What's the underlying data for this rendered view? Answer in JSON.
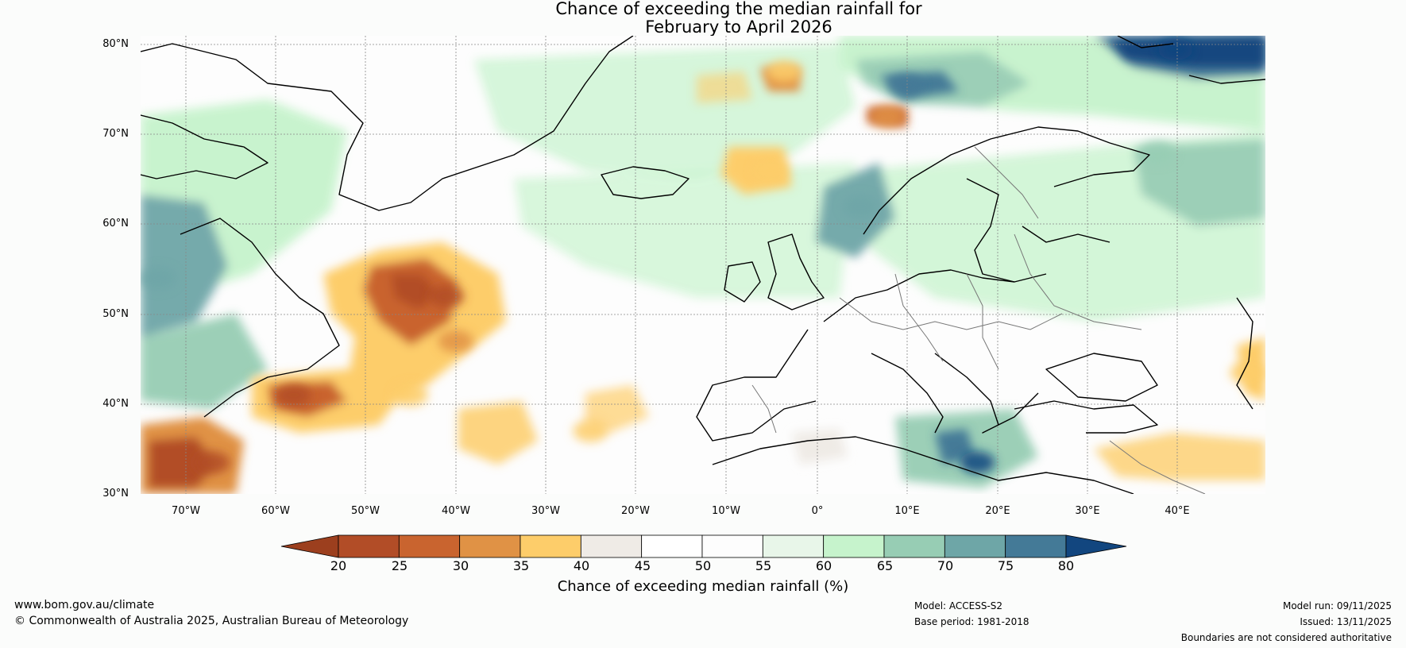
{
  "title": {
    "line1": "Chance of exceeding the median rainfall for",
    "line2": "February to April 2026"
  },
  "map": {
    "latitude_labels": [
      "80°N",
      "70°N",
      "60°N",
      "50°N",
      "40°N",
      "30°N"
    ],
    "longitude_labels": [
      "70°W",
      "60°W",
      "50°W",
      "40°W",
      "30°W",
      "20°W",
      "10°W",
      "0°",
      "10°E",
      "20°E",
      "30°E",
      "40°E"
    ],
    "extent": {
      "lon_min": -75,
      "lon_max": 50,
      "lat_min": 30,
      "lat_max": 81
    },
    "zones": [
      {
        "label": "dry",
        "lon": -67,
        "lat": 33.5,
        "pct": 20
      },
      {
        "label": "dry",
        "lon": -41,
        "lat": 52,
        "pct": 22
      },
      {
        "label": "dry",
        "lon": -58,
        "lat": 41,
        "pct": 22
      },
      {
        "label": "dry",
        "lon": -40,
        "lat": 47,
        "pct": 30
      },
      {
        "label": "dry",
        "lon": -45,
        "lat": 41,
        "pct": 35
      },
      {
        "label": "dry",
        "lon": -25,
        "lat": 37,
        "pct": 35
      },
      {
        "label": "dry",
        "lon": -3.5,
        "lat": 77,
        "pct": 35
      },
      {
        "label": "dry",
        "lon": 8,
        "lat": 72,
        "pct": 30
      },
      {
        "label": "dry",
        "lon": -5,
        "lat": 66,
        "pct": 35
      },
      {
        "label": "dry",
        "lon": 48,
        "lat": 43.5,
        "pct": 35
      },
      {
        "label": "wet",
        "lon": 40,
        "lat": 79.5,
        "pct": 80
      },
      {
        "label": "wet",
        "lon": 10,
        "lat": 75.5,
        "pct": 75
      },
      {
        "label": "wet",
        "lon": 18,
        "lat": 33.5,
        "pct": 80
      },
      {
        "label": "wet",
        "lon": -73,
        "lat": 54,
        "pct": 70
      },
      {
        "label": "wet",
        "lon": 5,
        "lat": 62,
        "pct": 70
      },
      {
        "label": "wet",
        "lon": 38,
        "lat": 68,
        "pct": 65
      }
    ]
  },
  "colorbar": {
    "title": "Chance of exceeding median rainfall (%)",
    "ticks": [
      "20",
      "25",
      "30",
      "35",
      "40",
      "45",
      "50",
      "55",
      "60",
      "65",
      "70",
      "75",
      "80"
    ],
    "below_color": "#9c3f1e",
    "above_color": "#12467f",
    "colors": [
      "#b24d27",
      "#c9642f",
      "#e09245",
      "#fdcd6a",
      "#efebe6",
      "#ffffff",
      "#fdfdfd",
      "#e8f6e9",
      "#c6f3cc",
      "#97cdb4",
      "#6ea6a7",
      "#447a97"
    ]
  },
  "footer": {
    "website": "www.bom.gov.au/climate",
    "copyright": "© Commonwealth of Australia 2025, Australian Bureau of Meteorology",
    "model": "Model: ACCESS-S2",
    "base_period": "Base period: 1981-2018",
    "model_run": "Model run: 09/11/2025",
    "issued": "Issued: 13/11/2025",
    "disclaimer": "Boundaries are not considered authoritative"
  }
}
